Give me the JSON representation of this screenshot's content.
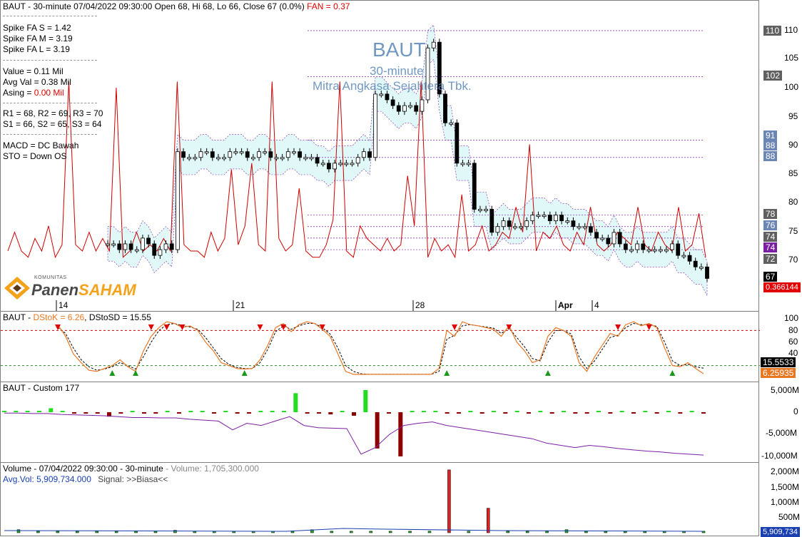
{
  "header": {
    "title": "BAUT - 30-minute 07/04/2022 09:30:00 Open 68, Hi 68, Lo 66, Close 67 (0.0%)",
    "fan_label": "FAN = 0.37"
  },
  "info": {
    "spike_s": "Spike FA S =  1.42",
    "spike_m": "Spike FA M =  3.19",
    "spike_l": "Spike FA L =  3.19",
    "value": "Value = 0.11 Mil",
    "avg_val": "Avg Val = 0.38 Mil",
    "asing_prefix": "Asing = ",
    "asing_value": "0.00 Mil",
    "r_levels": "R1 = 68, R2 = 69, R3 = 70",
    "s_levels": "S1 = 66, S2 = 65, S3 = 64",
    "macd": "MACD =  DC Bawah",
    "sto": "STO  =  Down OS"
  },
  "watermark": {
    "ticker": "BAUT",
    "interval": "30-minute",
    "company": "Mitra Angkasa Sejahtera Tbk."
  },
  "logo": {
    "small": "KOMUNITAS",
    "brand1": "Panen",
    "brand2": "SAHAM"
  },
  "colors": {
    "up": "#000000",
    "down": "#000000",
    "spike": "#cc0000",
    "cloud": "#e0f8f8",
    "purple": "#7b1fa2",
    "orange": "#e87722"
  },
  "price_axis": {
    "ticks": [
      "110",
      "105",
      "100",
      "95",
      "90",
      "85",
      "80",
      "75",
      "70"
    ],
    "badges": [
      {
        "text": "110",
        "bg": "#606060"
      },
      {
        "text": "102",
        "bg": "#606060"
      },
      {
        "text": "91",
        "bg": "#6b85b5"
      },
      {
        "text": "88",
        "bg": "#6b85b5"
      },
      {
        "text": "88",
        "bg": "#6b85b5"
      },
      {
        "text": "78",
        "bg": "#606060"
      },
      {
        "text": "76",
        "bg": "#6b85b5"
      },
      {
        "text": "74",
        "bg": "#606060"
      },
      {
        "text": "74",
        "bg": "#7b1fa2"
      },
      {
        "text": "72",
        "bg": "#606060"
      },
      {
        "text": "67",
        "bg": "#000000"
      },
      {
        "text": "0.366144",
        "bg": "#e00000"
      }
    ]
  },
  "date_axis": [
    "14",
    "21",
    "28",
    "Apr",
    "4"
  ],
  "stoch": {
    "title_prefix": "BAUT - ",
    "dstok": "DStoK = 6.26",
    "dstod": ", DStoSD = 15.55",
    "ticks": [
      "100",
      "80",
      "60",
      "40"
    ],
    "badge_d": "15.5533",
    "badge_k": "6.25935"
  },
  "custom": {
    "title": "BAUT - Custom 177",
    "ticks": [
      "5,000M",
      "0",
      "-5,000M",
      "-10,000M"
    ]
  },
  "volume": {
    "title": "Volume - 07/04/2022 09:30:00 - 30-minute",
    "volume_text": " - Volume: 1,705,300.000",
    "avg_label": "Avg.Vol: 5,909,734.000",
    "signal": "Signal: >>Biasa<<",
    "ticks": [
      "2,000M",
      "1,500M",
      "1,000M",
      "500M"
    ],
    "badge": "5,909,734"
  },
  "chart_data": {
    "type": "candlestick",
    "title": "BAUT - 30-minute",
    "last": {
      "open": 68,
      "high": 68,
      "low": 66,
      "close": 67
    },
    "ylim": [
      66,
      111
    ],
    "price_levels": [
      110,
      102,
      91,
      88,
      78,
      76,
      74,
      72
    ],
    "close_series": [
      73,
      73,
      72,
      73,
      72,
      72,
      74,
      73,
      71,
      72,
      73,
      72,
      89,
      88,
      88,
      88,
      89,
      89,
      88,
      88,
      88,
      89,
      89,
      89,
      88,
      88,
      89,
      89,
      88,
      88,
      88,
      89,
      89,
      88,
      88,
      88,
      87,
      87,
      86,
      87,
      87,
      87,
      87,
      88,
      89,
      88,
      99,
      99,
      98,
      97,
      96,
      97,
      97,
      96,
      98,
      107,
      108,
      99,
      94,
      94,
      87,
      87,
      87,
      79,
      79,
      79,
      75,
      76,
      77,
      76,
      76,
      76,
      77,
      78,
      78,
      78,
      77,
      78,
      77,
      77,
      76,
      76,
      76,
      75,
      74,
      74,
      73,
      75,
      73,
      72,
      72,
      73,
      72,
      72,
      72,
      72,
      72,
      73,
      71,
      71,
      70,
      69,
      69,
      67
    ],
    "spike_series": [
      0.5,
      0.8,
      0.5,
      0.4,
      0.7,
      0.5,
      0.9,
      0.4,
      0.6,
      3.2,
      0.6,
      0.5,
      0.8,
      0.5,
      0.7,
      0.5,
      3.1,
      0.4,
      0.5,
      0.8,
      0.5,
      0.6,
      0.5,
      0.7,
      0.5,
      3.2,
      0.6,
      0.5,
      0.5,
      0.4,
      0.8,
      0.5,
      0.7,
      1.8,
      0.6,
      0.9,
      1.9,
      0.6,
      0.5,
      3.2,
      0.7,
      0.5,
      0.6,
      1.5,
      0.5,
      0.4,
      0.4,
      0.6,
      1.0,
      3.2,
      0.5,
      0.4,
      0.9,
      0.7,
      0.6,
      0.5,
      0.7,
      0.5,
      0.6,
      1.7,
      0.9,
      3.2,
      0.4,
      0.7,
      0.5,
      0.6,
      0.4,
      1.4,
      0.5,
      0.6,
      0.9,
      0.5,
      0.6,
      0.8,
      0.7,
      1.2,
      0.8,
      2.2,
      0.5,
      0.8,
      0.7,
      0.9,
      0.6,
      0.5,
      0.8,
      0.6,
      1.2,
      0.6,
      0.5,
      0.6,
      0.8,
      0.7,
      0.6,
      1.2,
      0.6,
      0.5,
      0.8,
      0.6,
      0.5,
      1.2,
      0.5,
      0.6,
      1.1,
      0.4
    ],
    "stoch_k": [
      90,
      70,
      40,
      25,
      12,
      10,
      15,
      20,
      30,
      18,
      10,
      45,
      70,
      85,
      95,
      92,
      85,
      88,
      80,
      60,
      45,
      25,
      20,
      15,
      14,
      15,
      30,
      55,
      85,
      92,
      78,
      90,
      95,
      92,
      82,
      70,
      40,
      10,
      5,
      5,
      5,
      5,
      5,
      5,
      5,
      5,
      5,
      5,
      5,
      15,
      80,
      70,
      95,
      90,
      88,
      85,
      82,
      70,
      88,
      60,
      45,
      25,
      30,
      70,
      85,
      80,
      70,
      25,
      10,
      35,
      55,
      75,
      70,
      90,
      95,
      88,
      92,
      85,
      50,
      20,
      18,
      25,
      15,
      6
    ],
    "stoch_d": [
      85,
      75,
      50,
      30,
      18,
      12,
      14,
      18,
      25,
      20,
      14,
      35,
      60,
      80,
      90,
      92,
      88,
      86,
      82,
      68,
      50,
      32,
      22,
      17,
      15,
      15,
      25,
      48,
      78,
      88,
      82,
      88,
      92,
      92,
      85,
      74,
      50,
      20,
      10,
      6,
      5,
      5,
      5,
      5,
      5,
      5,
      5,
      5,
      5,
      10,
      65,
      72,
      88,
      90,
      88,
      86,
      84,
      75,
      84,
      68,
      52,
      32,
      28,
      60,
      80,
      80,
      74,
      35,
      15,
      28,
      48,
      68,
      72,
      85,
      92,
      90,
      90,
      87,
      60,
      28,
      20,
      22,
      18,
      15.55
    ],
    "custom_bars": [
      0.3,
      0.3,
      0.2,
      0.3,
      0.9,
      0.3,
      -0.3,
      -0.2,
      -0.3,
      -1.0,
      -0.2,
      0.3,
      -0.3,
      -0.2,
      0.3,
      -0.2,
      0.2,
      0.3,
      -0.3,
      0.2,
      -0.2,
      -0.3,
      0.3,
      0.2,
      0.3,
      4.3,
      -0.3,
      -0.2,
      -0.5,
      0.2,
      -0.8,
      5.0,
      -8.2,
      -0.2,
      -10.0,
      0.2,
      0.2,
      0.2,
      -0.2,
      -0.3,
      0.2,
      -0.2,
      0.2,
      -0.3,
      0.3,
      -0.2,
      0.3,
      -0.3,
      0.2,
      -0.2,
      -0.3,
      0.2,
      -0.2,
      0.3,
      -0.3,
      0.2,
      -0.3,
      0.2,
      -0.2,
      0.3,
      -0.3
    ],
    "custom_line": [
      -0.2,
      -0.2,
      -0.3,
      -0.3,
      -0.5,
      -0.6,
      -0.7,
      -0.8,
      -1.0,
      -1.2,
      -1.2,
      -1.3,
      -1.3,
      -1.6,
      -1.8,
      -2.0,
      -4.0,
      -2.5,
      -3.0,
      -2.0,
      -1.0,
      -3.0,
      -3.5,
      -3.6,
      -3.7,
      -9.5,
      -8.0,
      -5.0,
      -3.0,
      -2.5,
      -2.2,
      -3.0,
      -3.5,
      -4.0,
      -4.5,
      -5.0,
      -5.5,
      -6.0,
      -7.0,
      -7.5,
      -8.0,
      -7.5,
      -7.8,
      -8.2,
      -8.5,
      -8.8,
      -9.0,
      -9.3,
      -9.5,
      -9.7
    ],
    "volume_bars": [
      0.1,
      0.05,
      0.05,
      0.05,
      0.05,
      0.05,
      0.05,
      0.05,
      0.08,
      0.05,
      0.05,
      0.05,
      0.05,
      0.05,
      0.05,
      0.1,
      0.05,
      0.05,
      0.05,
      0.05,
      0.05,
      0.05,
      2.05,
      0.05,
      0.8,
      0.05,
      0.05,
      0.05,
      0.1,
      0.05,
      0.05,
      0.05,
      0.05,
      0.05,
      0.05,
      0.05
    ],
    "avg_volume": 5909734
  }
}
